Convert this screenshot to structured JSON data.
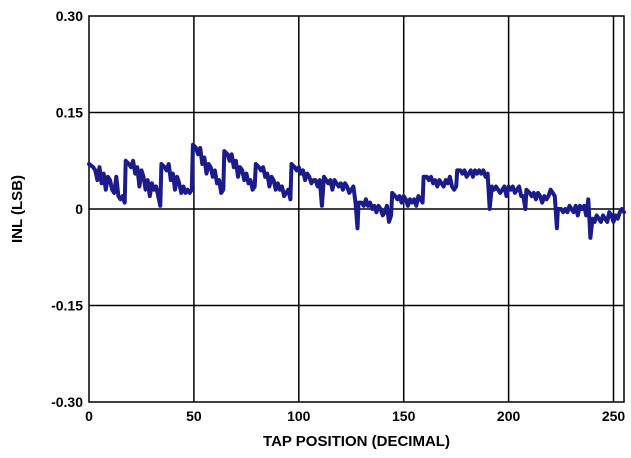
{
  "chart_data": {
    "type": "line",
    "title": "",
    "xlabel": "TAP POSITION (DECIMAL)",
    "ylabel": "INL (LSB)",
    "xlim": [
      0,
      255
    ],
    "ylim": [
      -0.3,
      0.3
    ],
    "x_ticks": [
      0,
      50,
      100,
      150,
      200,
      250
    ],
    "x_tick_labels": [
      "0",
      "50",
      "100",
      "150",
      "200",
      "250"
    ],
    "y_ticks": [
      0.3,
      0.15,
      0,
      -0.15,
      -0.3
    ],
    "y_tick_labels": [
      "0.30",
      "0.15",
      "0",
      "-0.15",
      "-0.30"
    ],
    "grid": true,
    "line_color": "#1b1b8a",
    "series": [
      {
        "name": "",
        "points": [
          [
            0,
            0.07
          ],
          [
            2,
            0.065
          ],
          [
            3,
            0.06
          ],
          [
            4,
            0.045
          ],
          [
            5,
            0.065
          ],
          [
            6,
            0.04
          ],
          [
            7,
            0.055
          ],
          [
            8,
            0.03
          ],
          [
            9,
            0.05
          ],
          [
            10,
            0.045
          ],
          [
            11,
            0.03
          ],
          [
            12,
            0.025
          ],
          [
            13,
            0.05
          ],
          [
            14,
            0.02
          ],
          [
            15,
            0.015
          ],
          [
            16,
            0.02
          ],
          [
            17,
            0.01
          ],
          [
            17.5,
            0.075
          ],
          [
            19,
            0.07
          ],
          [
            20,
            0.065
          ],
          [
            21,
            0.075
          ],
          [
            22,
            0.055
          ],
          [
            23,
            0.065
          ],
          [
            24,
            0.035
          ],
          [
            25,
            0.06
          ],
          [
            26,
            0.05
          ],
          [
            27,
            0.03
          ],
          [
            28,
            0.045
          ],
          [
            29,
            0.02
          ],
          [
            30,
            0.04
          ],
          [
            31,
            0.03
          ],
          [
            32,
            0.035
          ],
          [
            33,
            0.02
          ],
          [
            34,
            0.005
          ],
          [
            34.5,
            0.07
          ],
          [
            36,
            0.065
          ],
          [
            37,
            0.06
          ],
          [
            38,
            0.07
          ],
          [
            39,
            0.045
          ],
          [
            40,
            0.055
          ],
          [
            41,
            0.03
          ],
          [
            42,
            0.05
          ],
          [
            43,
            0.04
          ],
          [
            44,
            0.025
          ],
          [
            45,
            0.035
          ],
          [
            46,
            0.025
          ],
          [
            47,
            0.03
          ],
          [
            48,
            0.025
          ],
          [
            49,
            0.03
          ],
          [
            49.5,
            0.1
          ],
          [
            51,
            0.095
          ],
          [
            52,
            0.085
          ],
          [
            53,
            0.095
          ],
          [
            54,
            0.07
          ],
          [
            55,
            0.08
          ],
          [
            56,
            0.055
          ],
          [
            57,
            0.07
          ],
          [
            58,
            0.065
          ],
          [
            59,
            0.05
          ],
          [
            60,
            0.06
          ],
          [
            61,
            0.04
          ],
          [
            62,
            0.045
          ],
          [
            63,
            0.025
          ],
          [
            64,
            0.03
          ],
          [
            64.5,
            0.09
          ],
          [
            66,
            0.085
          ],
          [
            67,
            0.075
          ],
          [
            68,
            0.085
          ],
          [
            69,
            0.065
          ],
          [
            70,
            0.075
          ],
          [
            71,
            0.05
          ],
          [
            72,
            0.065
          ],
          [
            73,
            0.06
          ],
          [
            74,
            0.045
          ],
          [
            75,
            0.055
          ],
          [
            76,
            0.04
          ],
          [
            77,
            0.045
          ],
          [
            78,
            0.03
          ],
          [
            79,
            0.035
          ],
          [
            79.5,
            0.07
          ],
          [
            81,
            0.065
          ],
          [
            82,
            0.06
          ],
          [
            83,
            0.065
          ],
          [
            84,
            0.05
          ],
          [
            85,
            0.055
          ],
          [
            86,
            0.035
          ],
          [
            87,
            0.05
          ],
          [
            88,
            0.045
          ],
          [
            89,
            0.03
          ],
          [
            90,
            0.04
          ],
          [
            91,
            0.03
          ],
          [
            92,
            0.035
          ],
          [
            93,
            0.02
          ],
          [
            94,
            0.025
          ],
          [
            95,
            0.03
          ],
          [
            96,
            0.015
          ],
          [
            96.5,
            0.07
          ],
          [
            98,
            0.065
          ],
          [
            99,
            0.06
          ],
          [
            100,
            0.065
          ],
          [
            101,
            0.055
          ],
          [
            102,
            0.06
          ],
          [
            103,
            0.045
          ],
          [
            104,
            0.055
          ],
          [
            105,
            0.05
          ],
          [
            106,
            0.04
          ],
          [
            107,
            0.045
          ],
          [
            108,
            0.045
          ],
          [
            109,
            0.035
          ],
          [
            110,
            0.045
          ],
          [
            111,
            0.005
          ],
          [
            112,
            0.05
          ],
          [
            113,
            0.045
          ],
          [
            114,
            0.04
          ],
          [
            115,
            0.045
          ],
          [
            116,
            0.03
          ],
          [
            117,
            0.045
          ],
          [
            118,
            0.04
          ],
          [
            119,
            0.035
          ],
          [
            120,
            0.04
          ],
          [
            121,
            0.03
          ],
          [
            122,
            0.04
          ],
          [
            123,
            0.035
          ],
          [
            124,
            0.025
          ],
          [
            125,
            0.03
          ],
          [
            126,
            0.035
          ],
          [
            127,
            0.01
          ],
          [
            128,
            -0.03
          ],
          [
            128.5,
            0.01
          ],
          [
            130,
            0.01
          ],
          [
            131,
            0.005
          ],
          [
            132,
            0.015
          ],
          [
            133,
            0.005
          ],
          [
            134,
            0.01
          ],
          [
            135,
            0.0
          ],
          [
            136,
            0.005
          ],
          [
            137,
            -0.005
          ],
          [
            138,
            0.005
          ],
          [
            139,
            0.0
          ],
          [
            140,
            -0.01
          ],
          [
            141,
            -0.005
          ],
          [
            142,
            0.005
          ],
          [
            143,
            -0.02
          ],
          [
            144,
            -0.01
          ],
          [
            144.5,
            0.025
          ],
          [
            146,
            0.02
          ],
          [
            147,
            0.015
          ],
          [
            148,
            0.02
          ],
          [
            149,
            0.01
          ],
          [
            150,
            0.02
          ],
          [
            151,
            0.015
          ],
          [
            152,
            0.005
          ],
          [
            153,
            0.015
          ],
          [
            154,
            0.01
          ],
          [
            155,
            0.015
          ],
          [
            156,
            0.005
          ],
          [
            157,
            0.02
          ],
          [
            158,
            0.015
          ],
          [
            159,
            0.01
          ],
          [
            159.5,
            0.05
          ],
          [
            161,
            0.05
          ],
          [
            162,
            0.045
          ],
          [
            163,
            0.05
          ],
          [
            164,
            0.04
          ],
          [
            165,
            0.045
          ],
          [
            166,
            0.035
          ],
          [
            167,
            0.045
          ],
          [
            168,
            0.04
          ],
          [
            169,
            0.035
          ],
          [
            170,
            0.045
          ],
          [
            171,
            0.04
          ],
          [
            172,
            0.05
          ],
          [
            173,
            0.035
          ],
          [
            174,
            0.03
          ],
          [
            175,
            0.035
          ],
          [
            175.5,
            0.06
          ],
          [
            177,
            0.06
          ],
          [
            178,
            0.055
          ],
          [
            179,
            0.06
          ],
          [
            180,
            0.05
          ],
          [
            181,
            0.055
          ],
          [
            182,
            0.06
          ],
          [
            183,
            0.05
          ],
          [
            184,
            0.06
          ],
          [
            185,
            0.055
          ],
          [
            186,
            0.06
          ],
          [
            187,
            0.055
          ],
          [
            188,
            0.06
          ],
          [
            189,
            0.05
          ],
          [
            190,
            0.055
          ],
          [
            191,
            0.0
          ],
          [
            192,
            0.035
          ],
          [
            193,
            0.03
          ],
          [
            194,
            0.035
          ],
          [
            195,
            0.03
          ],
          [
            196,
            0.025
          ],
          [
            197,
            0.03
          ],
          [
            198,
            0.035
          ],
          [
            199,
            0.02
          ],
          [
            200,
            0.035
          ],
          [
            201,
            0.03
          ],
          [
            202,
            0.035
          ],
          [
            203,
            0.025
          ],
          [
            204,
            0.03
          ],
          [
            205,
            0.035
          ],
          [
            206,
            0.02
          ],
          [
            207,
            0.02
          ],
          [
            208,
            0.0
          ],
          [
            208.5,
            0.03
          ],
          [
            210,
            0.025
          ],
          [
            211,
            0.02
          ],
          [
            212,
            0.025
          ],
          [
            213,
            0.015
          ],
          [
            214,
            0.025
          ],
          [
            215,
            0.02
          ],
          [
            216,
            0.01
          ],
          [
            217,
            0.02
          ],
          [
            218,
            0.015
          ],
          [
            219,
            0.02
          ],
          [
            220,
            0.03
          ],
          [
            221,
            0.025
          ],
          [
            222,
            0.02
          ],
          [
            223,
            -0.03
          ],
          [
            223.5,
            0.0
          ],
          [
            225,
            0.0
          ],
          [
            226,
            -0.005
          ],
          [
            227,
            0.0
          ],
          [
            228,
            -0.005
          ],
          [
            229,
            0.005
          ],
          [
            230,
            0.0
          ],
          [
            231,
            -0.005
          ],
          [
            232,
            0.005
          ],
          [
            233,
            -0.01
          ],
          [
            234,
            0.005
          ],
          [
            235,
            0.0
          ],
          [
            236,
            0.005
          ],
          [
            237,
            -0.01
          ],
          [
            238,
            0.015
          ],
          [
            239,
            -0.045
          ],
          [
            240,
            -0.015
          ],
          [
            241,
            -0.02
          ],
          [
            242,
            -0.01
          ],
          [
            243,
            -0.015
          ],
          [
            244,
            -0.02
          ],
          [
            245,
            -0.01
          ],
          [
            246,
            -0.015
          ],
          [
            247,
            -0.02
          ],
          [
            248,
            -0.005
          ],
          [
            249,
            -0.01
          ],
          [
            250,
            -0.02
          ],
          [
            251,
            -0.01
          ],
          [
            252,
            -0.015
          ],
          [
            253,
            -0.005
          ],
          [
            254,
            0.0
          ],
          [
            255,
            -0.005
          ]
        ]
      }
    ]
  }
}
